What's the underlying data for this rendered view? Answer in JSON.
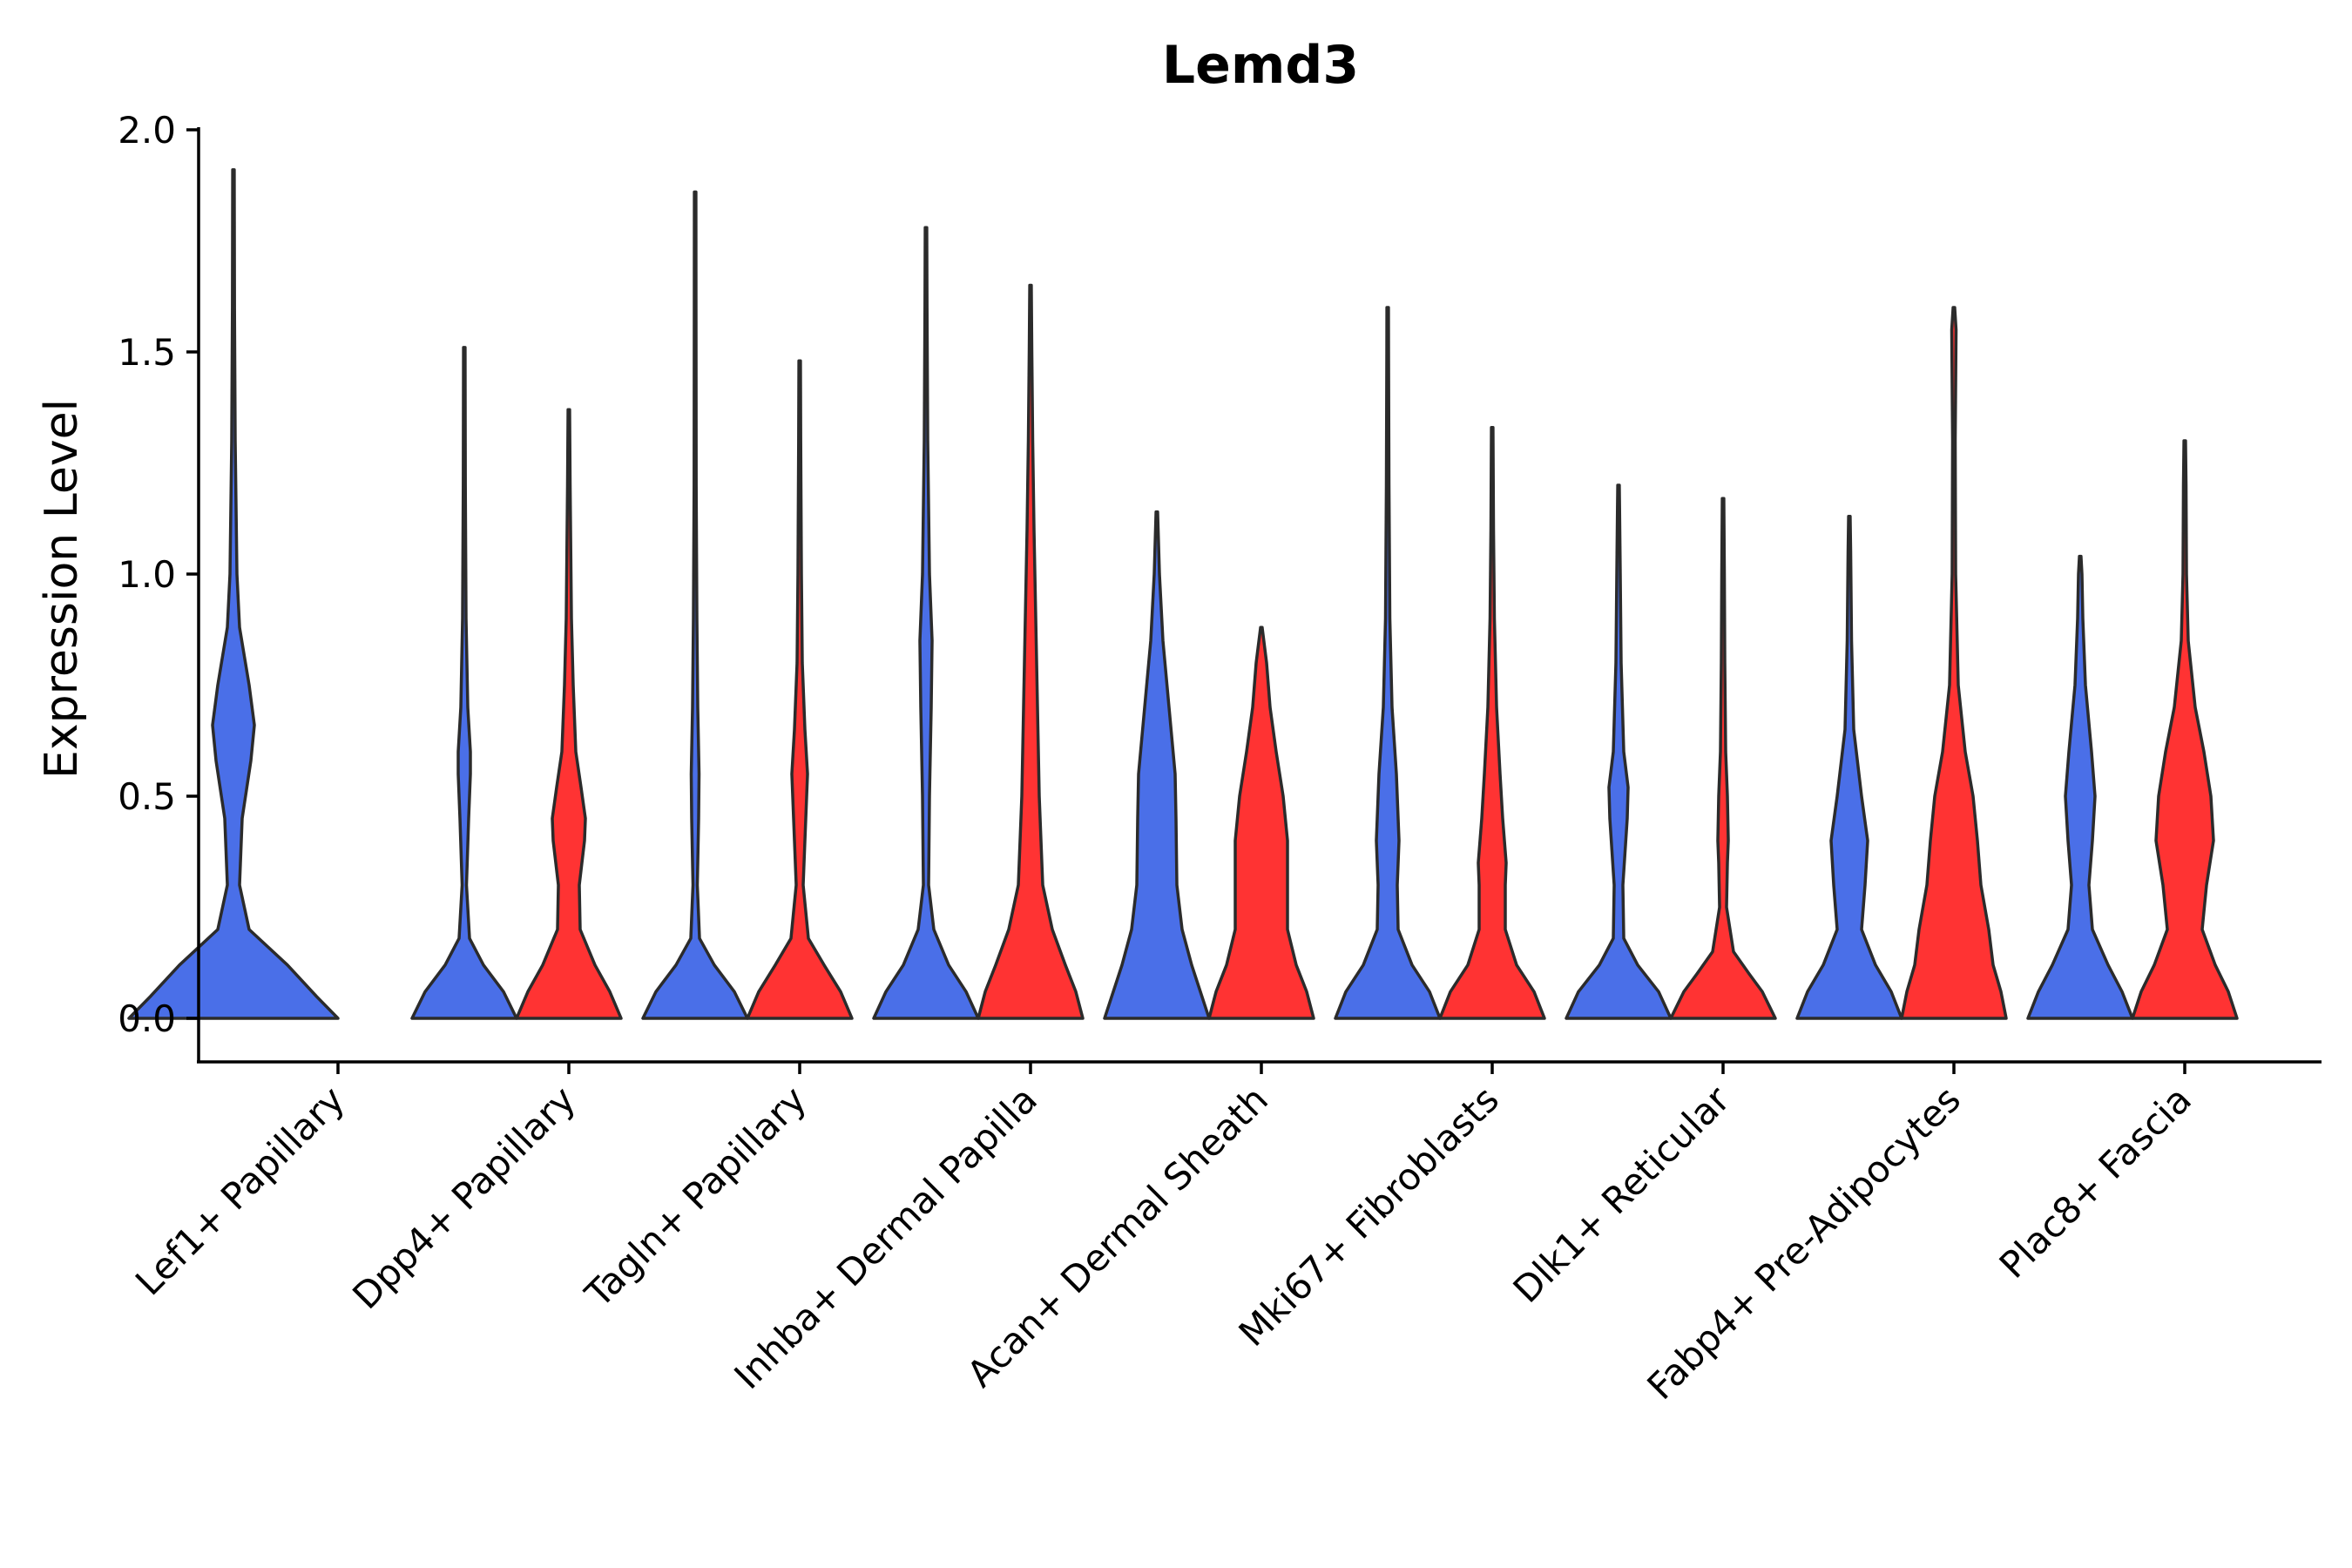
{
  "chart_data": {
    "type": "violin",
    "title": "Lemd3",
    "xlabel": "",
    "ylabel": "Expression Level",
    "ylim": [
      -0.1,
      2.0
    ],
    "yticks": [
      "0.0",
      "0.5",
      "1.0",
      "1.5",
      "2.0"
    ],
    "ytick_values": [
      0.0,
      0.5,
      1.0,
      1.5,
      2.0
    ],
    "categories": [
      "Lef1+ Papillary",
      "Dpp4+ Papillary",
      "Tagln+ Papillary",
      "Inhba+ Dermal Papilla",
      "Acan+ Dermal Sheath",
      "Mki67+ Fibroblasts",
      "Dlk1+ Reticular",
      "Fabp4+ Pre-Adipocytes",
      "Plac8+ Fascia"
    ],
    "series": [
      {
        "name": "group-1",
        "color": "#4a6fe8",
        "max_values": [
          1.91,
          1.51,
          1.86,
          1.78,
          1.14,
          1.6,
          1.2,
          1.13,
          1.04
        ]
      },
      {
        "name": "group-2",
        "color": "#ff3333",
        "max_values": [
          null,
          1.37,
          1.48,
          1.65,
          0.88,
          1.33,
          1.17,
          1.6,
          1.3
        ]
      }
    ],
    "grid": false,
    "legend": "none"
  }
}
